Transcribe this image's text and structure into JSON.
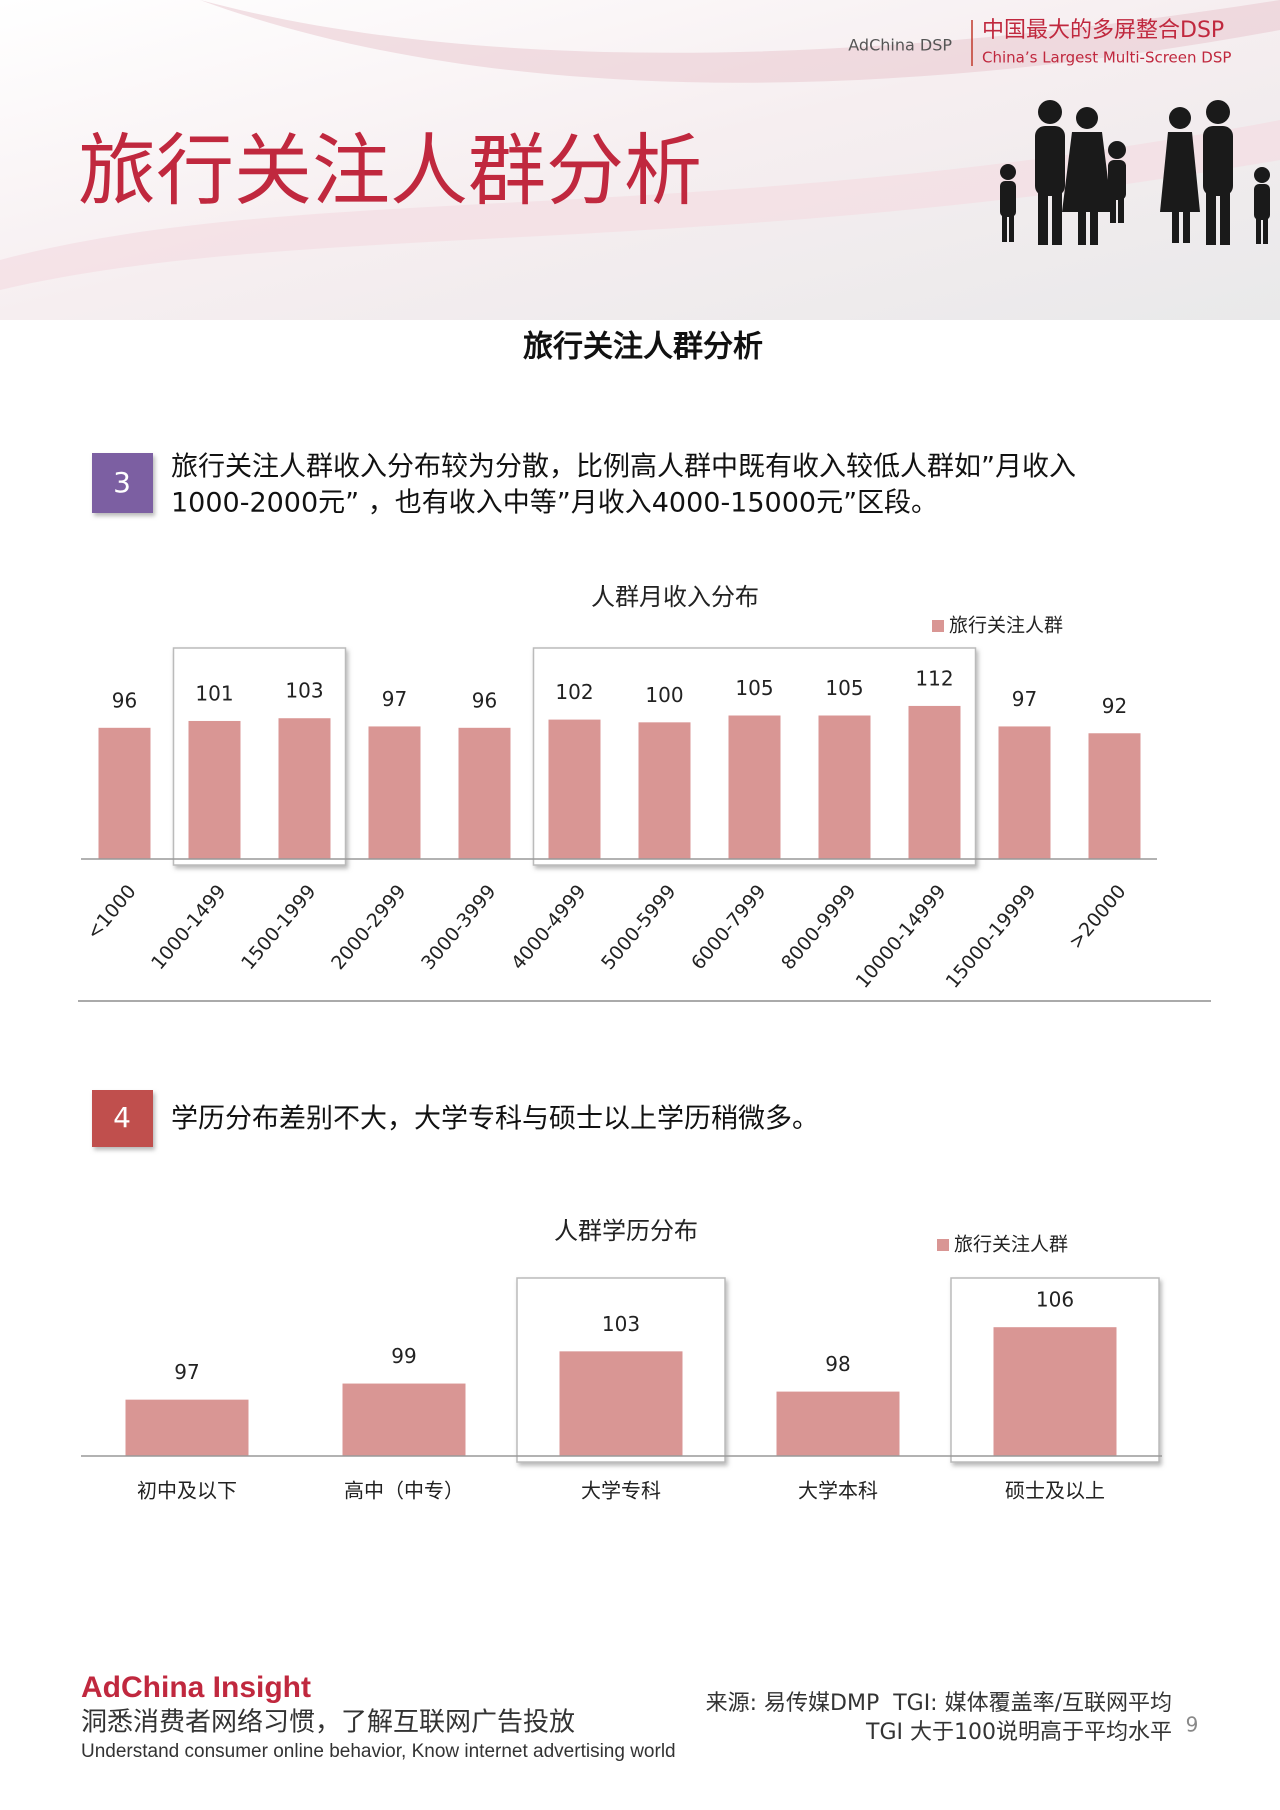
{
  "header": {
    "brand": "AdChina DSP",
    "slogan_cn": "中国最大的多屏整合DSP",
    "slogan_en": "China’s Largest Multi-Screen DSP",
    "title": "旅行关注人群分析"
  },
  "subtitle": "旅行关注人群分析",
  "sections": [
    {
      "number": "3",
      "lines": [
        "旅行关注人群收入分布较为分散，比例高人群中既有收入较低人群如”月收入",
        "1000-2000元” ，也有收入中等”月收入4000-15000元”区段。"
      ]
    },
    {
      "number": "4",
      "lines": [
        "学历分布差别不大，大学专科与硕士以上学历稍微多。"
      ]
    }
  ],
  "chart_data": [
    {
      "type": "bar",
      "title": "人群月收入分布",
      "categories": [
        "<1000",
        "1000-1499",
        "1500-1999",
        "2000-2999",
        "3000-3999",
        "4000-4999",
        "5000-5999",
        "6000-7999",
        "8000-9999",
        "10000-14999",
        "15000-19999",
        ">20000"
      ],
      "series": [
        {
          "name": "旅行关注人群",
          "color": "#d99694",
          "values": [
            96,
            101,
            103,
            97,
            96,
            102,
            100,
            105,
            105,
            112,
            97,
            92
          ]
        }
      ],
      "ylim": [
        0,
        120
      ]
    },
    {
      "type": "bar",
      "title": "人群学历分布",
      "categories": [
        "初中及以下",
        "高中（中专）",
        "大学专科",
        "大学本科",
        "硕士及以上"
      ],
      "series": [
        {
          "name": "旅行关注人群",
          "color": "#d99694",
          "values": [
            97,
            99,
            103,
            98,
            106
          ]
        }
      ],
      "ylim": [
        90,
        110
      ]
    }
  ],
  "footer": {
    "brand": "AdChina Insight",
    "slogan_cn": "洞悉消费者网络习惯，了解互联网广告投放",
    "slogan_en": "Understand consumer online behavior, Know internet advertising world",
    "source": [
      "来源: 易传媒DMP  TGI: 媒体覆盖率/互联网平均",
      "TGI 大于100说明高于平均水平"
    ],
    "page": "9"
  }
}
